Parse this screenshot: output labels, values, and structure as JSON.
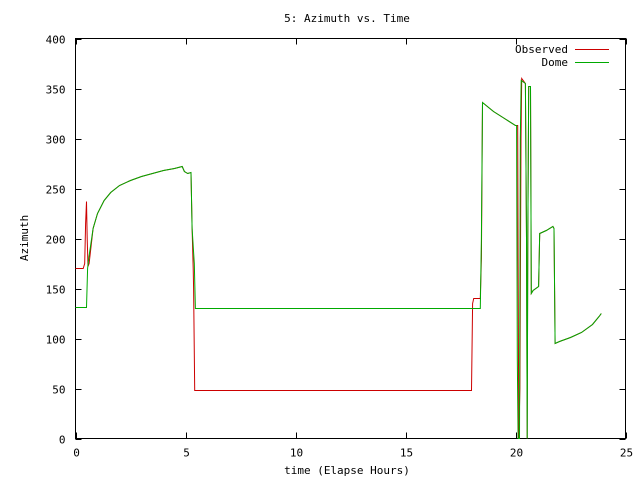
{
  "chart_data": {
    "type": "line",
    "title": "5: Azimuth vs. Time",
    "xlabel": "time (Elapse Hours)",
    "ylabel": "Azimuth",
    "xlim": [
      0,
      25
    ],
    "ylim": [
      0,
      400
    ],
    "xticks": [
      0,
      5,
      10,
      15,
      20,
      25
    ],
    "yticks": [
      0,
      50,
      100,
      150,
      200,
      250,
      300,
      350,
      400
    ],
    "grid": false,
    "legend_position": "top-right",
    "series": [
      {
        "name": "Observed",
        "color": "#cc0000",
        "points": [
          [
            0.0,
            170
          ],
          [
            0.35,
            170
          ],
          [
            0.42,
            175
          ],
          [
            0.46,
            215
          ],
          [
            0.5,
            237
          ],
          [
            0.53,
            200
          ],
          [
            0.57,
            172
          ],
          [
            0.62,
            175
          ],
          [
            0.8,
            210
          ],
          [
            1.0,
            225
          ],
          [
            1.3,
            238
          ],
          [
            1.6,
            246
          ],
          [
            2.0,
            253
          ],
          [
            2.5,
            258
          ],
          [
            3.0,
            262
          ],
          [
            3.5,
            265
          ],
          [
            4.0,
            268
          ],
          [
            4.5,
            270
          ],
          [
            4.85,
            272
          ],
          [
            4.95,
            267
          ],
          [
            5.1,
            265
          ],
          [
            5.25,
            266
          ],
          [
            5.3,
            210
          ],
          [
            5.35,
            170
          ],
          [
            5.37,
            150
          ],
          [
            5.42,
            48
          ],
          [
            18.0,
            48
          ],
          [
            18.05,
            135
          ],
          [
            18.1,
            140
          ],
          [
            18.4,
            140
          ],
          [
            18.45,
            180
          ],
          [
            18.5,
            336
          ],
          [
            19.0,
            327
          ],
          [
            19.5,
            320
          ],
          [
            20.0,
            313
          ],
          [
            20.1,
            313
          ],
          [
            20.12,
            180
          ],
          [
            20.15,
            0
          ],
          [
            20.2,
            50
          ],
          [
            20.25,
            300
          ],
          [
            20.28,
            360
          ],
          [
            20.45,
            355
          ],
          [
            20.5,
            200
          ],
          [
            20.53,
            0
          ],
          [
            20.56,
            200
          ],
          [
            20.6,
            352
          ],
          [
            20.68,
            352
          ],
          [
            20.72,
            145
          ],
          [
            20.8,
            148
          ],
          [
            21.05,
            152
          ],
          [
            21.1,
            205
          ],
          [
            21.4,
            208
          ],
          [
            21.7,
            212
          ],
          [
            21.75,
            210
          ],
          [
            21.8,
            95
          ],
          [
            22.0,
            97
          ],
          [
            22.5,
            101
          ],
          [
            23.0,
            106
          ],
          [
            23.5,
            114
          ],
          [
            23.8,
            122
          ],
          [
            23.9,
            125
          ]
        ]
      },
      {
        "name": "Dome",
        "color": "#00aa00",
        "points": [
          [
            0.0,
            131
          ],
          [
            0.5,
            131
          ],
          [
            0.55,
            170
          ],
          [
            0.6,
            180
          ],
          [
            0.8,
            210
          ],
          [
            1.0,
            225
          ],
          [
            1.3,
            238
          ],
          [
            1.6,
            246
          ],
          [
            2.0,
            253
          ],
          [
            2.5,
            258
          ],
          [
            3.0,
            262
          ],
          [
            3.5,
            265
          ],
          [
            4.0,
            268
          ],
          [
            4.5,
            270
          ],
          [
            4.85,
            272
          ],
          [
            4.95,
            267
          ],
          [
            5.1,
            265
          ],
          [
            5.25,
            266
          ],
          [
            5.3,
            210
          ],
          [
            5.4,
            175
          ],
          [
            5.45,
            130
          ],
          [
            18.4,
            130
          ],
          [
            18.45,
            200
          ],
          [
            18.5,
            336
          ],
          [
            19.0,
            327
          ],
          [
            19.5,
            320
          ],
          [
            20.0,
            313
          ],
          [
            20.05,
            313
          ],
          [
            20.08,
            80
          ],
          [
            20.12,
            0
          ],
          [
            20.18,
            0
          ],
          [
            20.22,
            300
          ],
          [
            20.26,
            358
          ],
          [
            20.45,
            355
          ],
          [
            20.5,
            200
          ],
          [
            20.53,
            0
          ],
          [
            20.56,
            200
          ],
          [
            20.6,
            352
          ],
          [
            20.68,
            352
          ],
          [
            20.72,
            145
          ],
          [
            20.8,
            148
          ],
          [
            21.05,
            152
          ],
          [
            21.1,
            205
          ],
          [
            21.4,
            208
          ],
          [
            21.7,
            212
          ],
          [
            21.75,
            210
          ],
          [
            21.8,
            95
          ],
          [
            22.0,
            97
          ],
          [
            22.5,
            101
          ],
          [
            23.0,
            106
          ],
          [
            23.5,
            114
          ],
          [
            23.8,
            122
          ],
          [
            23.9,
            125
          ]
        ]
      }
    ]
  }
}
